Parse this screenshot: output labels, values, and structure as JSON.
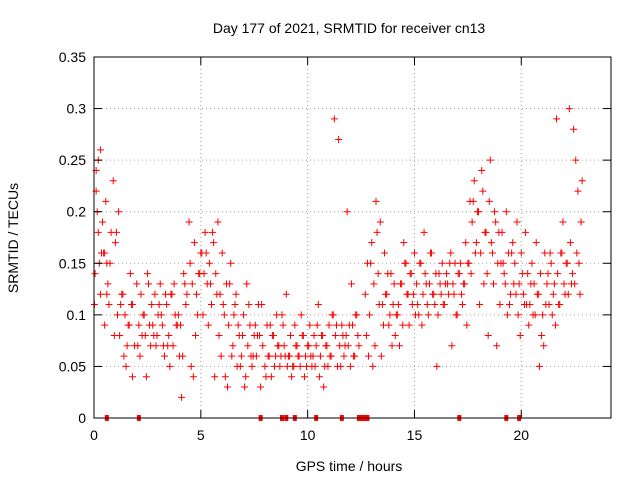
{
  "chart_data": {
    "type": "scatter",
    "title": "Day 177 of 2021, SRMTID for receiver cn13",
    "xlabel": "GPS time / hours",
    "ylabel": "SRMTID / TECUs",
    "xlim": [
      0,
      24.2
    ],
    "ylim": [
      0,
      0.35
    ],
    "xticks": [
      0,
      5,
      10,
      15,
      20
    ],
    "xtick_labels": [
      "0",
      "5",
      "10",
      "15",
      "20"
    ],
    "yticks": [
      0,
      0.05,
      0.1,
      0.15,
      0.2,
      0.25,
      0.3,
      0.35
    ],
    "ytick_labels": [
      "0",
      "0.05",
      "0.1",
      "0.15",
      "0.2",
      "0.25",
      "0.3",
      "0.35"
    ],
    "grid": true,
    "marker": "plus",
    "color": "#ff0000",
    "series": [
      {
        "name": "SRMTID",
        "x": [
          0.05,
          0.1,
          0.15,
          0.2,
          0.3,
          0.4,
          0.5,
          0.55,
          0.6,
          0.7,
          0.8,
          0.9,
          1.0,
          1.1,
          1.2,
          1.3,
          1.4,
          1.5,
          1.6,
          1.7,
          1.8,
          1.9,
          2.0,
          2.1,
          2.2,
          2.3,
          2.4,
          2.5,
          2.6,
          2.7,
          2.8,
          2.9,
          3.0,
          3.1,
          3.2,
          3.3,
          3.4,
          3.5,
          3.6,
          3.7,
          3.8,
          3.9,
          4.0,
          4.1,
          4.2,
          4.3,
          4.5,
          4.6,
          4.7,
          4.8,
          4.9,
          5.0,
          5.1,
          5.2,
          5.3,
          5.4,
          5.5,
          5.6,
          5.7,
          5.8,
          5.9,
          6.0,
          6.1,
          6.2,
          6.3,
          6.4,
          6.5,
          6.6,
          6.7,
          6.8,
          6.9,
          7.0,
          7.1,
          7.2,
          7.3,
          7.4,
          7.5,
          7.6,
          7.7,
          7.8,
          7.9,
          8.0,
          8.1,
          8.2,
          8.3,
          8.4,
          8.5,
          8.6,
          8.7,
          8.8,
          8.9,
          9.0,
          9.1,
          9.2,
          9.3,
          9.4,
          9.5,
          9.6,
          9.7,
          9.8,
          9.9,
          10.0,
          10.1,
          10.2,
          10.3,
          10.4,
          10.5,
          10.6,
          10.7,
          10.8,
          10.9,
          11.0,
          11.1,
          11.2,
          11.3,
          11.4,
          11.5,
          11.6,
          11.7,
          11.8,
          11.9,
          12.0,
          12.1,
          12.2,
          12.3,
          12.4,
          12.7,
          12.8,
          12.9,
          13.0,
          13.1,
          13.2,
          13.3,
          13.4,
          13.5,
          13.6,
          13.7,
          13.8,
          13.9,
          14.0,
          14.1,
          14.2,
          14.3,
          14.4,
          14.5,
          14.6,
          14.7,
          14.8,
          14.9,
          15.0,
          15.1,
          15.2,
          15.3,
          15.4,
          15.5,
          15.6,
          15.7,
          15.8,
          15.9,
          16.0,
          16.1,
          16.2,
          16.3,
          16.4,
          16.5,
          16.6,
          16.7,
          16.8,
          16.9,
          17.0,
          17.1,
          17.2,
          17.3,
          17.4,
          17.5,
          17.6,
          17.7,
          17.8,
          17.9,
          18.0,
          18.1,
          18.2,
          18.3,
          18.4,
          18.5,
          18.6,
          18.7,
          18.8,
          18.9,
          19.0,
          19.1,
          19.2,
          19.3,
          19.4,
          19.5,
          19.6,
          19.7,
          19.8,
          19.9,
          20.0,
          20.1,
          20.2,
          20.3,
          20.4,
          20.5,
          20.6,
          20.7,
          20.8,
          20.9,
          21.0,
          21.1,
          21.2,
          21.3,
          21.4,
          21.5,
          21.6,
          21.7,
          21.8,
          21.9,
          22.0,
          22.1,
          22.2,
          22.3,
          22.4,
          22.5,
          22.6,
          22.7,
          22.8,
          0.1,
          0.2,
          0.3,
          0.45,
          0.5,
          0.6,
          0.95,
          1.05,
          1.15,
          1.25,
          1.8,
          2.05,
          2.15,
          2.45,
          3.35,
          3.45,
          3.55,
          4.05,
          4.15,
          4.25,
          4.45,
          4.55,
          4.65,
          5.05,
          5.15,
          5.35,
          5.45,
          5.55,
          5.65,
          5.85,
          5.95,
          6.15,
          6.25,
          6.45,
          6.85,
          7.05,
          7.45,
          7.65,
          8.05,
          8.45,
          8.95,
          9.25,
          9.65,
          9.85,
          10.15,
          10.35,
          10.55,
          10.75,
          10.95,
          11.25,
          11.45,
          11.85,
          12.05,
          12.75,
          12.85,
          12.95,
          13.05,
          13.25,
          13.45,
          13.75,
          13.95,
          14.15,
          14.35,
          14.55,
          14.75,
          14.95,
          15.25,
          15.45,
          15.75,
          16.05,
          16.45,
          16.75,
          17.15,
          17.45,
          17.65,
          17.75,
          17.85,
          18.05,
          18.25,
          18.45,
          18.65,
          18.85,
          19.05,
          19.35,
          19.65,
          19.95,
          20.25,
          20.55,
          20.85,
          21.05,
          21.35,
          21.65,
          21.95,
          22.25,
          22.45,
          22.55,
          22.65,
          22.75,
          22.85,
          0.02,
          0.25,
          0.35,
          0.65,
          0.75,
          1.35,
          1.45,
          1.55,
          1.65,
          1.75,
          2.25,
          2.35,
          2.55,
          2.65,
          2.75,
          2.85,
          2.95,
          3.05,
          3.15,
          3.25,
          3.65,
          3.75,
          3.85,
          3.95,
          4.35,
          4.75,
          4.85,
          4.95,
          5.25,
          5.75,
          6.05,
          6.35,
          6.55,
          6.65,
          6.75,
          6.95,
          7.15,
          7.25,
          7.35,
          7.55,
          7.75,
          7.85,
          8.15,
          8.25,
          8.35,
          8.55,
          8.65,
          8.75,
          8.85,
          9.05,
          9.15,
          9.35,
          9.45,
          9.55,
          9.75,
          9.95,
          10.05,
          10.25,
          10.45,
          10.65,
          10.85,
          11.05,
          11.15,
          11.35,
          11.55,
          11.65,
          11.75,
          11.95,
          12.15,
          12.25,
          12.35,
          13.15,
          13.35,
          13.55,
          13.65,
          13.85,
          14.05,
          14.25,
          14.45,
          14.65,
          14.85,
          15.05,
          15.15,
          15.35,
          15.55,
          15.65,
          15.85,
          15.95,
          16.15,
          16.25,
          16.35,
          16.55,
          16.65,
          16.85,
          16.95,
          17.05,
          17.25,
          17.35,
          17.55,
          17.95,
          18.15,
          18.35,
          18.55,
          18.75,
          18.95,
          19.15,
          19.25,
          19.45,
          19.55,
          19.75,
          19.85,
          20.05,
          20.15,
          20.35,
          20.45,
          20.65,
          20.75,
          20.95,
          21.15,
          21.25,
          21.45,
          21.55,
          21.75,
          21.85,
          22.05,
          22.15,
          22.35
        ],
        "y": [
          0.14,
          0.24,
          0.2,
          0.25,
          0.26,
          0.19,
          0.16,
          0.21,
          0.12,
          0.11,
          0.18,
          0.23,
          0.17,
          0.1,
          0.08,
          0.12,
          0.06,
          0.05,
          0.09,
          0.14,
          0.11,
          0.07,
          0.13,
          0.09,
          0.12,
          0.1,
          0.08,
          0.14,
          0.09,
          0.11,
          0.08,
          0.07,
          0.1,
          0.13,
          0.09,
          0.06,
          0.11,
          0.08,
          0.12,
          0.07,
          0.1,
          0.09,
          0.06,
          0.02,
          0.14,
          0.11,
          0.15,
          0.13,
          0.17,
          0.12,
          0.14,
          0.16,
          0.1,
          0.18,
          0.13,
          0.15,
          0.11,
          0.17,
          0.14,
          0.19,
          0.12,
          0.16,
          0.1,
          0.13,
          0.09,
          0.15,
          0.07,
          0.11,
          0.05,
          0.08,
          0.06,
          0.1,
          0.04,
          0.07,
          0.09,
          0.05,
          0.08,
          0.06,
          0.11,
          0.03,
          0.07,
          0.05,
          0.09,
          0.06,
          0.04,
          0.08,
          0.06,
          0.07,
          0.05,
          0.1,
          0.07,
          0.12,
          0.06,
          0.08,
          0.05,
          0.09,
          0.07,
          0.06,
          0.1,
          0.08,
          0.06,
          0.07,
          0.09,
          0.05,
          0.08,
          0.07,
          0.11,
          0.06,
          0.08,
          0.05,
          0.07,
          0.09,
          0.06,
          0.1,
          0.08,
          0.05,
          0.07,
          0.09,
          0.06,
          0.08,
          0.07,
          0.05,
          0.09,
          0.06,
          0.1,
          0.07,
          0.12,
          0.15,
          0.1,
          0.17,
          0.13,
          0.21,
          0.14,
          0.19,
          0.11,
          0.16,
          0.12,
          0.09,
          0.14,
          0.11,
          0.08,
          0.1,
          0.07,
          0.13,
          0.17,
          0.15,
          0.12,
          0.14,
          0.11,
          0.16,
          0.13,
          0.1,
          0.15,
          0.12,
          0.14,
          0.11,
          0.13,
          0.16,
          0.12,
          0.14,
          0.1,
          0.13,
          0.15,
          0.11,
          0.14,
          0.12,
          0.16,
          0.13,
          0.15,
          0.1,
          0.14,
          0.12,
          0.13,
          0.17,
          0.15,
          0.21,
          0.19,
          0.23,
          0.17,
          0.2,
          0.16,
          0.22,
          0.18,
          0.14,
          0.21,
          0.17,
          0.13,
          0.19,
          0.15,
          0.11,
          0.18,
          0.14,
          0.2,
          0.16,
          0.12,
          0.17,
          0.15,
          0.19,
          0.13,
          0.16,
          0.12,
          0.18,
          0.14,
          0.11,
          0.15,
          0.13,
          0.17,
          0.12,
          0.14,
          0.1,
          0.16,
          0.13,
          0.11,
          0.15,
          0.12,
          0.09,
          0.14,
          0.11,
          0.16,
          0.13,
          0.15,
          0.12,
          0.17,
          0.14,
          0.13,
          0.16,
          0.15,
          0.19,
          0.22,
          0.18,
          0.12,
          0.16,
          0.09,
          0.15,
          0.08,
          0.18,
          0.2,
          0.11,
          0.04,
          0.07,
          0.06,
          0.04,
          0.12,
          0.07,
          0.05,
          0.09,
          0.06,
          0.13,
          0.19,
          0.05,
          0.04,
          0.16,
          0.14,
          0.09,
          0.13,
          0.18,
          0.04,
          0.08,
          0.06,
          0.04,
          0.03,
          0.06,
          0.05,
          0.03,
          0.06,
          0.08,
          0.04,
          0.05,
          0.06,
          0.04,
          0.05,
          0.04,
          0.06,
          0.05,
          0.04,
          0.03,
          0.05,
          0.29,
          0.27,
          0.2,
          0.13,
          0.08,
          0.06,
          0.15,
          0.05,
          0.18,
          0.06,
          0.14,
          0.07,
          0.1,
          0.13,
          0.15,
          0.09,
          0.12,
          0.15,
          0.18,
          0.16,
          0.05,
          0.13,
          0.07,
          0.15,
          0.09,
          0.14,
          0.21,
          0.16,
          0.11,
          0.13,
          0.08,
          0.16,
          0.07,
          0.15,
          0.1,
          0.13,
          0.08,
          0.11,
          0.1,
          0.05,
          0.07,
          0.16,
          0.29,
          0.19,
          0.3,
          0.28,
          0.25,
          0.22,
          0.12,
          0.23,
          0.11,
          0.15,
          0.16,
          0.13,
          0.15,
          0.12,
          0.1,
          0.07,
          0.09,
          0.11,
          0.08,
          0.1,
          0.13,
          0.07,
          0.09,
          0.12,
          0.08,
          0.11,
          0.1,
          0.07,
          0.12,
          0.13,
          0.09,
          0.1,
          0.12,
          0.08,
          0.1,
          0.14,
          0.16,
          0.12,
          0.11,
          0.13,
          0.1,
          0.12,
          0.09,
          0.08,
          0.13,
          0.11,
          0.06,
          0.09,
          0.08,
          0.11,
          0.06,
          0.09,
          0.08,
          0.1,
          0.07,
          0.06,
          0.09,
          0.05,
          0.06,
          0.05,
          0.07,
          0.06,
          0.08,
          0.05,
          0.07,
          0.06,
          0.09,
          0.08,
          0.07,
          0.06,
          0.1,
          0.09,
          0.05,
          0.08,
          0.07,
          0.09,
          0.06,
          0.1,
          0.08,
          0.07,
          0.11,
          0.09,
          0.12,
          0.1,
          0.13,
          0.11,
          0.09,
          0.12,
          0.14,
          0.1,
          0.11,
          0.09,
          0.13,
          0.1,
          0.12,
          0.11,
          0.14,
          0.12,
          0.11,
          0.13,
          0.15,
          0.12,
          0.1,
          0.14,
          0.11,
          0.13,
          0.15,
          0.2,
          0.24,
          0.18,
          0.25,
          0.2,
          0.18,
          0.15,
          0.13,
          0.11,
          0.16,
          0.12,
          0.1,
          0.14,
          0.11,
          0.09,
          0.13,
          0.1,
          0.12,
          0.08,
          0.11,
          0.14,
          0.1,
          0.13,
          0.11,
          0.16,
          0.12,
          0.15,
          0.13
        ]
      }
    ],
    "gap_markers_x": [
      0.6,
      2.1,
      7.8,
      8.8,
      9.0,
      9.4,
      10.4,
      11.6,
      12.4,
      12.5,
      12.6,
      12.7,
      12.8,
      17.1,
      19.3,
      19.9
    ]
  }
}
